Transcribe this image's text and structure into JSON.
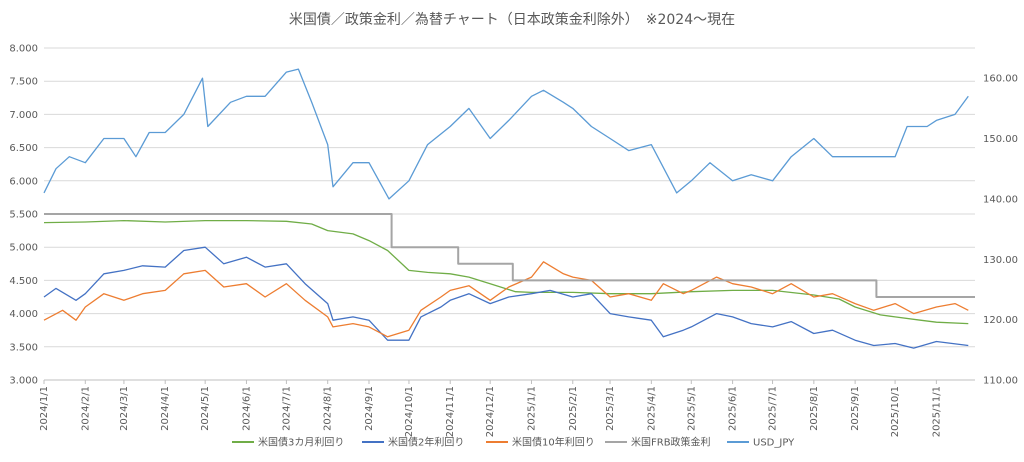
{
  "chart_data": {
    "type": "line",
    "title": "米国債／政策金利／為替チャート（日本政策金利除外）　※2024～現在",
    "xlabel": "",
    "ylabel": "",
    "y2label": "",
    "ylim": [
      3.0,
      8.0
    ],
    "y2lim": [
      110,
      165
    ],
    "grid": true,
    "legend_position": "bottom",
    "x_ticks": [
      "2024/1/1",
      "2024/2/1",
      "2024/3/1",
      "2024/4/1",
      "2024/5/1",
      "2024/6/1",
      "2024/7/1",
      "2024/8/1",
      "2024/9/1",
      "2024/10/1",
      "2024/11/1",
      "2024/12/1",
      "2025/1/1",
      "2025/2/1",
      "2025/3/1",
      "2025/4/1",
      "2025/5/1",
      "2025/6/1",
      "2025/7/1",
      "2025/8/1",
      "2025/9/1",
      "2025/10/1",
      "2025/11/1"
    ],
    "y_ticks": [
      "3.000",
      "3.500",
      "4.000",
      "4.500",
      "5.000",
      "5.500",
      "6.000",
      "6.500",
      "7.000",
      "7.500",
      "8.000"
    ],
    "y2_ticks": [
      "110.00",
      "120.00",
      "130.00",
      "140.00",
      "150.00",
      "160.00"
    ],
    "series": [
      {
        "name": "米国債3カ月利回り",
        "color": "#70ad47",
        "axis": "left",
        "points": [
          [
            "2024/1/1",
            5.37
          ],
          [
            "2024/2/1",
            5.38
          ],
          [
            "2024/3/1",
            5.4
          ],
          [
            "2024/4/1",
            5.38
          ],
          [
            "2024/5/1",
            5.4
          ],
          [
            "2024/6/1",
            5.4
          ],
          [
            "2024/7/1",
            5.39
          ],
          [
            "2024/7/20",
            5.35
          ],
          [
            "2024/8/1",
            5.25
          ],
          [
            "2024/8/20",
            5.2
          ],
          [
            "2024/9/1",
            5.1
          ],
          [
            "2024/9/15",
            4.95
          ],
          [
            "2024/10/1",
            4.65
          ],
          [
            "2024/10/15",
            4.62
          ],
          [
            "2024/11/1",
            4.6
          ],
          [
            "2024/11/15",
            4.55
          ],
          [
            "2024/12/1",
            4.45
          ],
          [
            "2024/12/20",
            4.33
          ],
          [
            "2025/1/1",
            4.32
          ],
          [
            "2025/2/1",
            4.32
          ],
          [
            "2025/3/1",
            4.3
          ],
          [
            "2025/4/1",
            4.3
          ],
          [
            "2025/5/1",
            4.33
          ],
          [
            "2025/6/1",
            4.35
          ],
          [
            "2025/7/1",
            4.35
          ],
          [
            "2025/8/1",
            4.28
          ],
          [
            "2025/8/20",
            4.22
          ],
          [
            "2025/9/1",
            4.1
          ],
          [
            "2025/9/20",
            3.98
          ],
          [
            "2025/10/1",
            3.95
          ],
          [
            "2025/10/20",
            3.9
          ],
          [
            "2025/11/1",
            3.87
          ],
          [
            "2025/11/25",
            3.85
          ]
        ]
      },
      {
        "name": "米国債2年利回り",
        "color": "#4472c4",
        "axis": "left",
        "points": [
          [
            "2024/1/1",
            4.25
          ],
          [
            "2024/1/10",
            4.38
          ],
          [
            "2024/1/25",
            4.2
          ],
          [
            "2024/2/1",
            4.3
          ],
          [
            "2024/2/15",
            4.6
          ],
          [
            "2024/3/1",
            4.65
          ],
          [
            "2024/3/15",
            4.72
          ],
          [
            "2024/4/1",
            4.7
          ],
          [
            "2024/4/15",
            4.95
          ],
          [
            "2024/5/1",
            5.0
          ],
          [
            "2024/5/15",
            4.75
          ],
          [
            "2024/6/1",
            4.85
          ],
          [
            "2024/6/15",
            4.7
          ],
          [
            "2024/7/1",
            4.75
          ],
          [
            "2024/7/15",
            4.45
          ],
          [
            "2024/8/1",
            4.15
          ],
          [
            "2024/8/5",
            3.9
          ],
          [
            "2024/8/20",
            3.95
          ],
          [
            "2024/9/1",
            3.9
          ],
          [
            "2024/9/15",
            3.6
          ],
          [
            "2024/10/1",
            3.6
          ],
          [
            "2024/10/10",
            3.95
          ],
          [
            "2024/10/25",
            4.1
          ],
          [
            "2024/11/1",
            4.2
          ],
          [
            "2024/11/15",
            4.3
          ],
          [
            "2024/12/1",
            4.15
          ],
          [
            "2024/12/15",
            4.25
          ],
          [
            "2025/1/1",
            4.3
          ],
          [
            "2025/1/15",
            4.35
          ],
          [
            "2025/2/1",
            4.25
          ],
          [
            "2025/2/15",
            4.3
          ],
          [
            "2025/3/1",
            4.0
          ],
          [
            "2025/3/15",
            3.95
          ],
          [
            "2025/4/1",
            3.9
          ],
          [
            "2025/4/10",
            3.65
          ],
          [
            "2025/4/25",
            3.75
          ],
          [
            "2025/5/1",
            3.8
          ],
          [
            "2025/5/20",
            4.0
          ],
          [
            "2025/6/1",
            3.95
          ],
          [
            "2025/6/15",
            3.85
          ],
          [
            "2025/7/1",
            3.8
          ],
          [
            "2025/7/15",
            3.88
          ],
          [
            "2025/8/1",
            3.7
          ],
          [
            "2025/8/15",
            3.75
          ],
          [
            "2025/9/1",
            3.6
          ],
          [
            "2025/9/15",
            3.52
          ],
          [
            "2025/10/1",
            3.55
          ],
          [
            "2025/10/15",
            3.48
          ],
          [
            "2025/11/1",
            3.58
          ],
          [
            "2025/11/25",
            3.52
          ]
        ]
      },
      {
        "name": "米国債10年利回り",
        "color": "#ed7d31",
        "axis": "left",
        "points": [
          [
            "2024/1/1",
            3.9
          ],
          [
            "2024/1/15",
            4.05
          ],
          [
            "2024/1/25",
            3.9
          ],
          [
            "2024/2/1",
            4.1
          ],
          [
            "2024/2/15",
            4.3
          ],
          [
            "2024/3/1",
            4.2
          ],
          [
            "2024/3/15",
            4.3
          ],
          [
            "2024/4/1",
            4.35
          ],
          [
            "2024/4/15",
            4.6
          ],
          [
            "2024/5/1",
            4.65
          ],
          [
            "2024/5/15",
            4.4
          ],
          [
            "2024/6/1",
            4.45
          ],
          [
            "2024/6/15",
            4.25
          ],
          [
            "2024/7/1",
            4.45
          ],
          [
            "2024/7/15",
            4.2
          ],
          [
            "2024/8/1",
            3.95
          ],
          [
            "2024/8/5",
            3.8
          ],
          [
            "2024/8/20",
            3.85
          ],
          [
            "2024/9/1",
            3.8
          ],
          [
            "2024/9/15",
            3.65
          ],
          [
            "2024/10/1",
            3.75
          ],
          [
            "2024/10/10",
            4.05
          ],
          [
            "2024/10/25",
            4.25
          ],
          [
            "2024/11/1",
            4.35
          ],
          [
            "2024/11/15",
            4.42
          ],
          [
            "2024/12/1",
            4.2
          ],
          [
            "2024/12/15",
            4.4
          ],
          [
            "2025/1/1",
            4.55
          ],
          [
            "2025/1/10",
            4.78
          ],
          [
            "2025/1/25",
            4.6
          ],
          [
            "2025/2/1",
            4.55
          ],
          [
            "2025/2/15",
            4.5
          ],
          [
            "2025/3/1",
            4.25
          ],
          [
            "2025/3/15",
            4.3
          ],
          [
            "2025/4/1",
            4.2
          ],
          [
            "2025/4/10",
            4.45
          ],
          [
            "2025/4/25",
            4.3
          ],
          [
            "2025/5/1",
            4.35
          ],
          [
            "2025/5/20",
            4.55
          ],
          [
            "2025/6/1",
            4.45
          ],
          [
            "2025/6/15",
            4.4
          ],
          [
            "2025/7/1",
            4.3
          ],
          [
            "2025/7/15",
            4.45
          ],
          [
            "2025/8/1",
            4.25
          ],
          [
            "2025/8/15",
            4.3
          ],
          [
            "2025/9/1",
            4.15
          ],
          [
            "2025/9/15",
            4.05
          ],
          [
            "2025/10/1",
            4.15
          ],
          [
            "2025/10/15",
            4.0
          ],
          [
            "2025/11/1",
            4.1
          ],
          [
            "2025/11/15",
            4.15
          ],
          [
            "2025/11/25",
            4.05
          ]
        ]
      },
      {
        "name": "米国FRB政策金利",
        "color": "#a5a5a5",
        "axis": "left",
        "step": true,
        "points": [
          [
            "2024/1/1",
            5.5
          ],
          [
            "2024/9/18",
            5.0
          ],
          [
            "2024/11/7",
            4.75
          ],
          [
            "2024/12/18",
            4.5
          ],
          [
            "2025/9/17",
            4.25
          ],
          [
            "2025/11/30",
            4.25
          ]
        ]
      },
      {
        "name": "USD_JPY",
        "color": "#5b9bd5",
        "axis": "right",
        "points": [
          [
            "2024/1/1",
            141
          ],
          [
            "2024/1/10",
            145
          ],
          [
            "2024/1/20",
            147
          ],
          [
            "2024/2/1",
            146
          ],
          [
            "2024/2/15",
            150
          ],
          [
            "2024/3/1",
            150
          ],
          [
            "2024/3/10",
            147
          ],
          [
            "2024/3/20",
            151
          ],
          [
            "2024/4/1",
            151
          ],
          [
            "2024/4/15",
            154
          ],
          [
            "2024/4/29",
            160
          ],
          [
            "2024/5/3",
            152
          ],
          [
            "2024/5/20",
            156
          ],
          [
            "2024/6/1",
            157
          ],
          [
            "2024/6/15",
            157
          ],
          [
            "2024/7/1",
            161
          ],
          [
            "2024/7/10",
            161.5
          ],
          [
            "2024/7/20",
            156
          ],
          [
            "2024/8/1",
            149
          ],
          [
            "2024/8/5",
            142
          ],
          [
            "2024/8/20",
            146
          ],
          [
            "2024/9/1",
            146
          ],
          [
            "2024/9/16",
            140
          ],
          [
            "2024/10/1",
            143
          ],
          [
            "2024/10/15",
            149
          ],
          [
            "2024/11/1",
            152
          ],
          [
            "2024/11/15",
            155
          ],
          [
            "2024/12/1",
            150
          ],
          [
            "2024/12/15",
            153
          ],
          [
            "2025/1/1",
            157
          ],
          [
            "2025/1/10",
            158
          ],
          [
            "2025/1/25",
            156
          ],
          [
            "2025/2/1",
            155
          ],
          [
            "2025/2/15",
            152
          ],
          [
            "2025/3/1",
            150
          ],
          [
            "2025/3/15",
            148
          ],
          [
            "2025/4/1",
            149
          ],
          [
            "2025/4/20",
            141
          ],
          [
            "2025/5/1",
            143
          ],
          [
            "2025/5/15",
            146
          ],
          [
            "2025/6/1",
            143
          ],
          [
            "2025/6/15",
            144
          ],
          [
            "2025/7/1",
            143
          ],
          [
            "2025/7/15",
            147
          ],
          [
            "2025/8/1",
            150
          ],
          [
            "2025/8/15",
            147
          ],
          [
            "2025/9/1",
            147
          ],
          [
            "2025/9/15",
            147
          ],
          [
            "2025/10/1",
            147
          ],
          [
            "2025/10/10",
            152
          ],
          [
            "2025/10/25",
            152
          ],
          [
            "2025/11/1",
            153
          ],
          [
            "2025/11/15",
            154
          ],
          [
            "2025/11/25",
            157
          ]
        ]
      }
    ]
  }
}
